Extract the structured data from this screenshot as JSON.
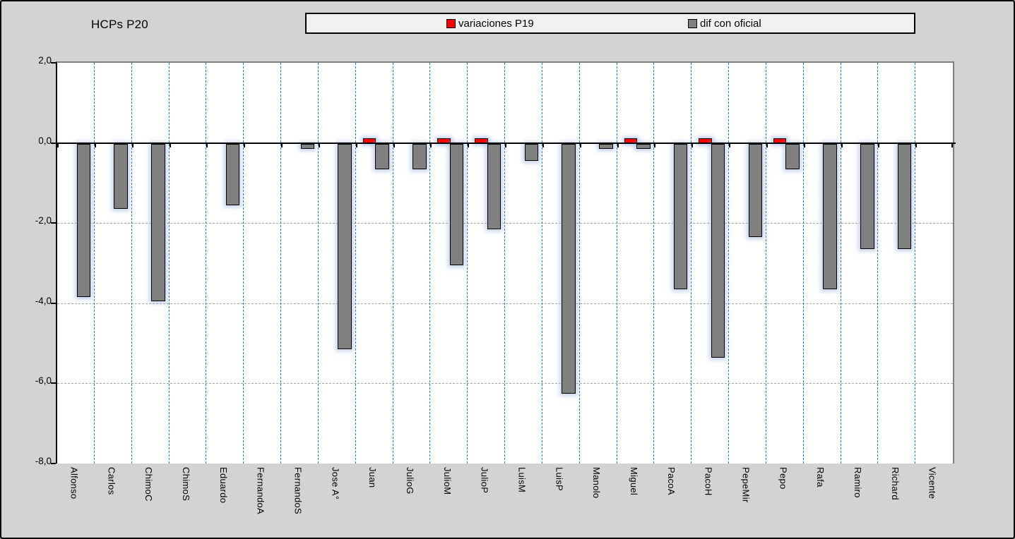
{
  "window": {
    "kind": "embedded spreadsheet chart"
  },
  "title": "HCPs P20",
  "legend": {
    "items": [
      {
        "label": "variaciones P19",
        "color": "#ff0000"
      },
      {
        "label": "dif con oficial",
        "color": "#808080"
      }
    ]
  },
  "colors": {
    "background": "#d3d3d3",
    "plot_background": "#ffffff",
    "bar_red": "#ff0000",
    "bar_gray": "#808080",
    "category_separator_blue": "#1f7ec8",
    "gridline_gray": "#a6a6a6",
    "bar_glow": "#96afdc",
    "legend_background": "#f1f1f1"
  },
  "chart_data": {
    "type": "bar",
    "title": "HCPs P20",
    "categories": [
      "Alfonso",
      "Carlos",
      "ChimoC",
      "ChimoS",
      "Eduardo",
      "FernandoA",
      "FernandoS",
      "Jose A°",
      "Juan",
      "JulioG",
      "JulioM",
      "JulioP",
      "LuisM",
      "LuisP",
      "Manolo",
      "Miguel",
      "PacoA",
      "PacoH",
      "PepeMir",
      "Pepo",
      "Rafa",
      "Ramiro",
      "Richard",
      "Vicente"
    ],
    "series": [
      {
        "name": "variaciones P19",
        "color": "#ff0000",
        "values": [
          0,
          0,
          0,
          0,
          0,
          0,
          0,
          0,
          0.1,
          0,
          0.1,
          0.1,
          0,
          0,
          0,
          0.1,
          0,
          0.1,
          0,
          0.1,
          0,
          0,
          0,
          0
        ]
      },
      {
        "name": "dif con oficial",
        "color": "#808080",
        "values": [
          -3.8,
          -1.6,
          -3.9,
          0,
          -1.5,
          0,
          -0.1,
          -5.1,
          -0.6,
          -0.6,
          -3.0,
          -2.1,
          -0.4,
          -6.2,
          -0.1,
          -0.1,
          -3.6,
          -5.3,
          -2.3,
          -0.6,
          -3.6,
          -2.6,
          -2.6,
          0
        ]
      }
    ],
    "xlabel": "",
    "ylabel": "",
    "ylim": [
      -8,
      2
    ],
    "ytick_step": 2,
    "ytick_labels": [
      "2,0",
      "0,0",
      "-2,0",
      "-4,0",
      "-6,0",
      "-8,0"
    ],
    "grid": {
      "horizontal": "dashed at -2,-4,-6",
      "vertical": "dashed blue category separators"
    },
    "legend_position": "top"
  }
}
